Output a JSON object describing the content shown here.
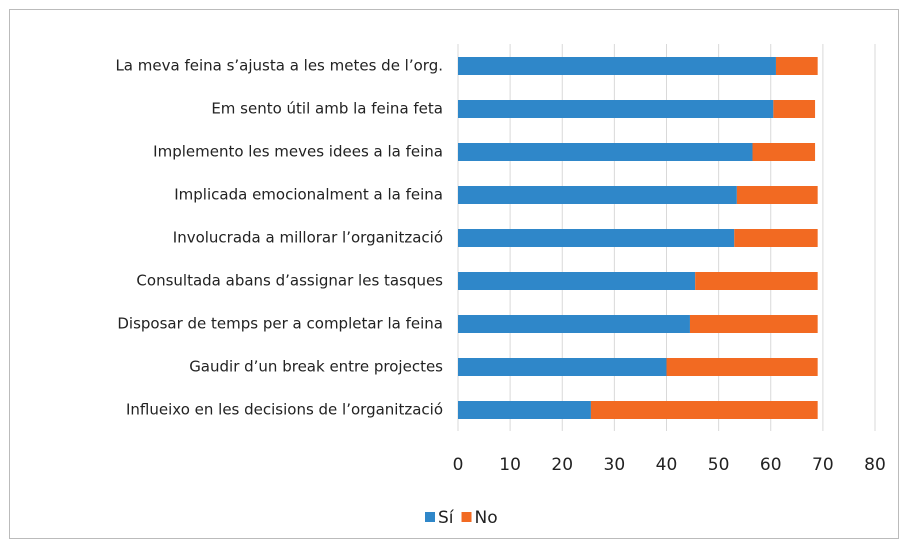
{
  "chart_data": {
    "type": "stacked_barh",
    "categories": [
      "La meva feina s’ajusta a les metes de l’org.",
      "Em sento útil amb la feina feta",
      "Implemento les meves idees a la feina",
      "Implicada emocionalment a la feina",
      "Involucrada a millorar l’organització",
      "Consultada abans d’assignar les tasques",
      "Disposar de temps per a completar la feina",
      "Gaudir d’un break entre projectes",
      "Influeixo en les decisions de l’organització"
    ],
    "series": [
      {
        "name": "Sí",
        "color": "#2f87c9",
        "values": [
          61,
          60.5,
          56.5,
          53.5,
          53,
          45.5,
          44.5,
          40,
          25.5
        ]
      },
      {
        "name": "No",
        "color": "#f26a22",
        "values": [
          8,
          8,
          12,
          15.5,
          16,
          23.5,
          24.5,
          29,
          43.5
        ]
      }
    ],
    "xlim": [
      0,
      80
    ],
    "xticks": [
      0,
      10,
      20,
      30,
      40,
      50,
      60,
      70,
      80
    ],
    "grid": true,
    "legend": "bottom"
  }
}
